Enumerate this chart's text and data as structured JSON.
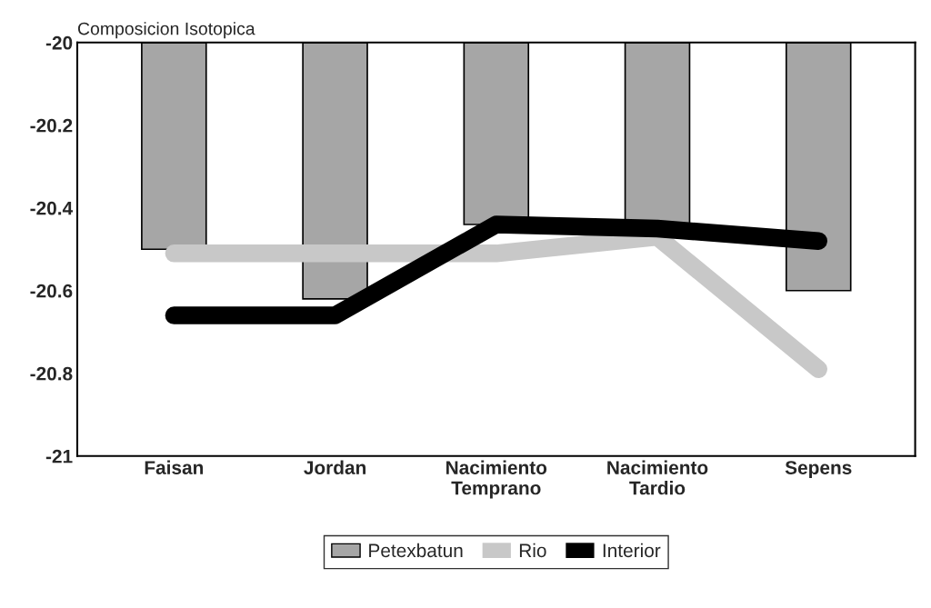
{
  "chart_data": {
    "type": "bar",
    "ylabel": "Composicion Isotopica",
    "categories": [
      "Faisan",
      "Jordan",
      "Nacimiento\nTemprano",
      "Nacimiento\nTardio",
      "Sepens"
    ],
    "series": [
      {
        "name": "Petexbatun",
        "color": "#a6a6a6",
        "values": [
          -20.5,
          -20.62,
          -20.44,
          -20.44,
          -20.6
        ]
      },
      {
        "name": "Rio",
        "type": "line",
        "color": "#c8c8c8",
        "values": [
          -20.51,
          -20.51,
          -20.51,
          -20.47,
          -20.79
        ]
      },
      {
        "name": "Interior",
        "type": "line",
        "color": "#000000",
        "values": [
          -20.66,
          -20.66,
          -20.44,
          -20.45,
          -20.48
        ]
      }
    ],
    "ylim": [
      -21,
      -20
    ],
    "yticks": [
      -21,
      -20.8,
      -20.6,
      -20.4,
      -20.2,
      -20
    ],
    "grid": false,
    "legend": "bottom"
  }
}
